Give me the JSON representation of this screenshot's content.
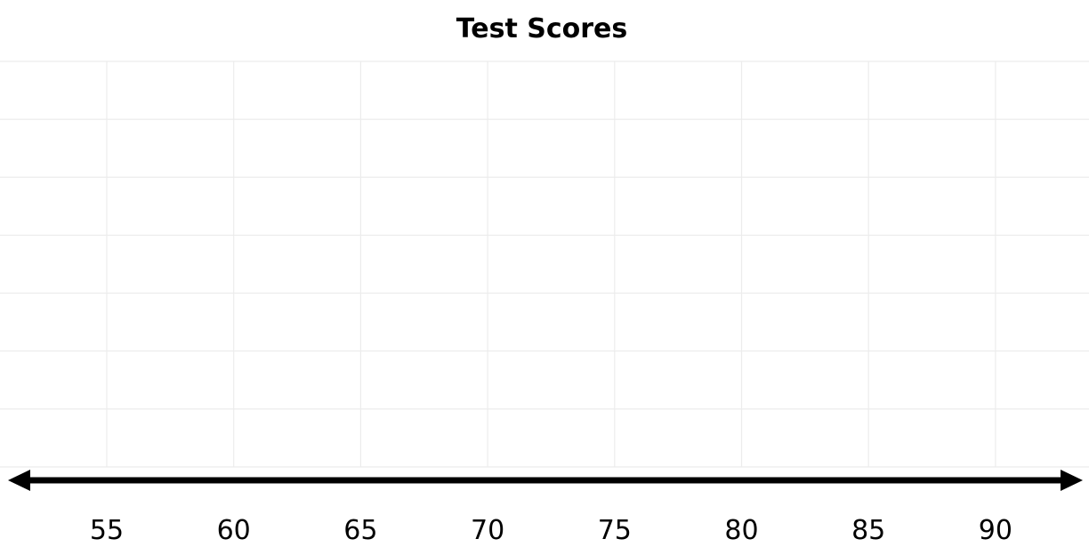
{
  "chart_data": {
    "type": "scatter",
    "subtype": "dot-plot",
    "title": "Test Scores",
    "xlabel": "",
    "ylabel": "",
    "x_ticks": [
      55,
      60,
      65,
      70,
      75,
      80,
      85,
      90
    ],
    "xlim": [
      50.8,
      93.7
    ],
    "points": [],
    "grid": true,
    "axis_arrows": "both-ends",
    "colors": {
      "grid": "#ececec",
      "axis": "#000000"
    }
  }
}
